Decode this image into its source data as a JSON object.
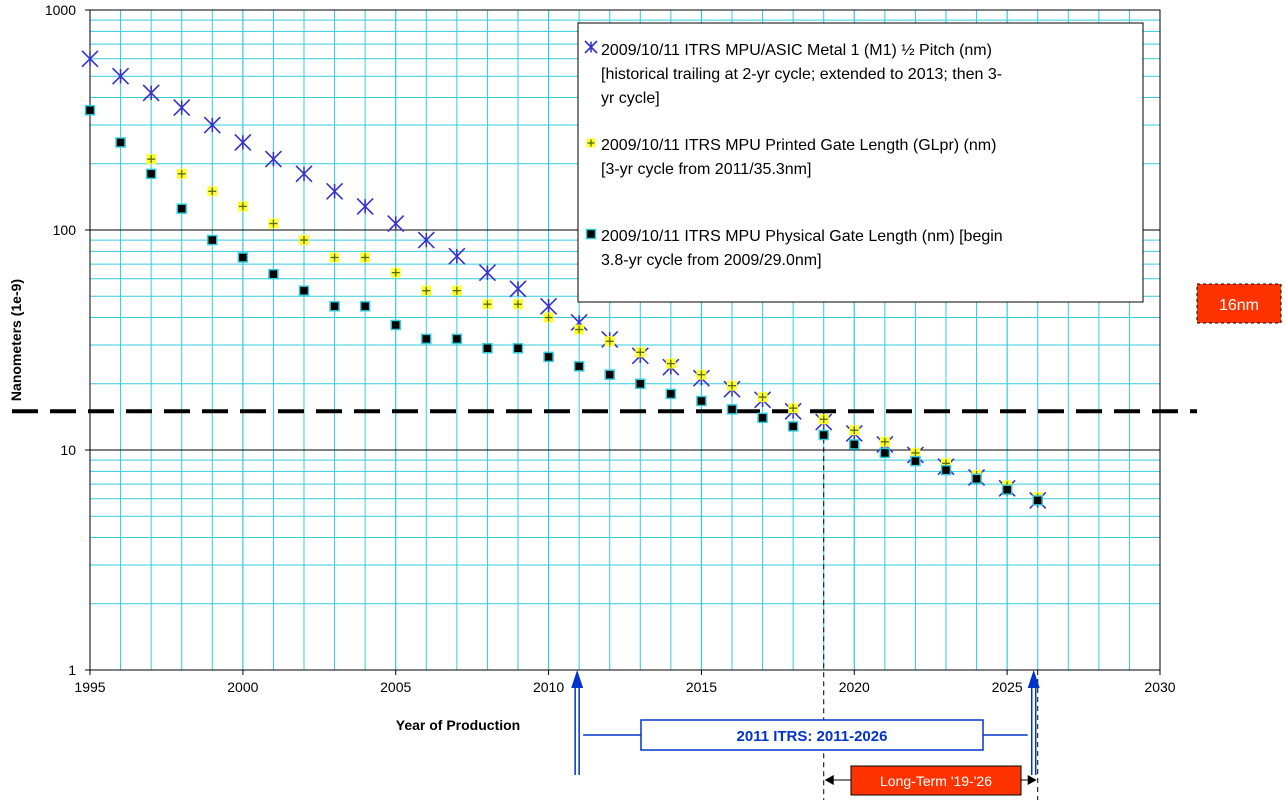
{
  "chart_data": {
    "type": "scatter",
    "xlabel": "Year of Production",
    "ylabel": "Nanometers  (1e-9)",
    "xlim": [
      1995,
      2030
    ],
    "ylim": [
      1,
      1000
    ],
    "yscale": "log",
    "grid": true,
    "legend_position": "top-right",
    "x_ticks": [
      "1995",
      "2000",
      "2005",
      "2010",
      "2015",
      "2020",
      "2025",
      "2030"
    ],
    "y_ticks": [
      "1",
      "10",
      "100",
      "1000"
    ],
    "series": [
      {
        "name": "2009/10/11 ITRS MPU/ASIC Metal 1 (M1) ½ Pitch (nm) [historical trailing at 2-yr cycle; extended to 2013; then 3-yr cycle]",
        "marker": "asterisk",
        "color": "#3333cc",
        "x": [
          1995,
          1996,
          1997,
          1998,
          1999,
          2000,
          2001,
          2002,
          2003,
          2004,
          2005,
          2006,
          2007,
          2008,
          2009,
          2010,
          2011,
          2012,
          2013,
          2014,
          2015,
          2016,
          2017,
          2018,
          2019,
          2020,
          2021,
          2022,
          2023,
          2024,
          2025,
          2026
        ],
        "y": [
          600,
          500,
          420,
          360,
          300,
          250,
          210,
          180,
          150,
          128,
          107,
          90,
          76,
          64,
          54,
          45,
          38,
          31.8,
          26.8,
          23.8,
          21.2,
          18.9,
          16.9,
          15.0,
          13.4,
          11.9,
          10.6,
          9.5,
          8.4,
          7.5,
          6.7,
          5.9
        ]
      },
      {
        "name": "2009/10/11 ITRS MPU Printed Gate Length (GLpr) (nm) [3-yr cycle from 2011/35.3nm]",
        "marker": "plus-square",
        "color": "#ffff33",
        "x": [
          1995,
          1996,
          1997,
          1998,
          1999,
          2000,
          2001,
          2002,
          2003,
          2004,
          2005,
          2006,
          2007,
          2008,
          2009,
          2010,
          2011,
          2012,
          2013,
          2014,
          2015,
          2016,
          2017,
          2018,
          2019,
          2020,
          2021,
          2022,
          2023,
          2024,
          2025,
          2026
        ],
        "y": [
          350,
          250,
          210,
          180,
          150,
          128,
          107,
          90,
          75,
          75,
          64,
          53,
          53,
          46,
          46,
          40,
          35.3,
          31.2,
          27.8,
          24.7,
          22.0,
          19.6,
          17.4,
          15.5,
          13.8,
          12.3,
          10.9,
          9.7,
          8.7,
          7.7,
          6.9,
          6.1
        ]
      },
      {
        "name": "2009/10/11 ITRS MPU Physical Gate Length (nm) [begin 3.8-yr cycle from 2009/29.0nm]",
        "marker": "filled-square",
        "color": "#000000",
        "x": [
          1995,
          1996,
          1997,
          1998,
          1999,
          2000,
          2001,
          2002,
          2003,
          2004,
          2005,
          2006,
          2007,
          2008,
          2009,
          2010,
          2011,
          2012,
          2013,
          2014,
          2015,
          2016,
          2017,
          2018,
          2019,
          2020,
          2021,
          2022,
          2023,
          2024,
          2025,
          2026
        ],
        "y": [
          350,
          250,
          180,
          125,
          90,
          75,
          63,
          53,
          45,
          45,
          37,
          32,
          32,
          29,
          29,
          26.5,
          24,
          22,
          20,
          18,
          16.7,
          15.3,
          14.0,
          12.8,
          11.7,
          10.6,
          9.7,
          8.9,
          8.1,
          7.4,
          6.6,
          5.9
        ]
      }
    ],
    "annotations": {
      "reference_line_label": "16nm",
      "reference_line_value": 15,
      "itrs_range_label": "2011 ITRS:  2011-2026",
      "itrs_range": [
        2011,
        2026
      ],
      "long_term_label": "Long-Term  '19-'26",
      "long_term_range": [
        2019,
        2026
      ]
    }
  }
}
